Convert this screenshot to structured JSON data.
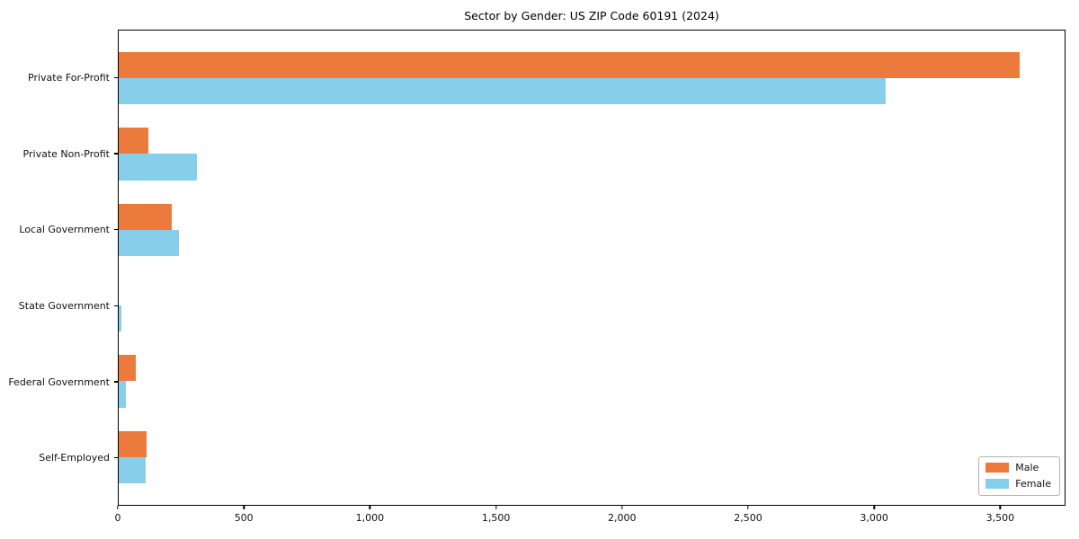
{
  "chart_data": {
    "type": "bar",
    "orientation": "horizontal",
    "title": "Sector by Gender: US ZIP Code 60191 (2024)",
    "categories": [
      "Private For-Profit",
      "Private Non-Profit",
      "Local Government",
      "State Government",
      "Federal Government",
      "Self-Employed"
    ],
    "series": [
      {
        "name": "Male",
        "color": "#ec7a3d",
        "values": [
          3580,
          118,
          211,
          0,
          68,
          111
        ]
      },
      {
        "name": "Female",
        "color": "#87ceeb",
        "values": [
          3047,
          310,
          239,
          12,
          28,
          107
        ]
      }
    ],
    "xlabel": "",
    "ylabel": "",
    "xlim": [
      0,
      3759
    ],
    "xticks": [
      0,
      500,
      1000,
      1500,
      2000,
      2500,
      3000,
      3500
    ],
    "xtick_labels": [
      "0",
      "500",
      "1,000",
      "1,500",
      "2,000",
      "2,500",
      "3,000",
      "3,500"
    ],
    "legend": {
      "position": "lower right",
      "entries": [
        "Male",
        "Female"
      ]
    },
    "grid": false,
    "background_color": "#ffffff",
    "spine_color": "#000000"
  }
}
